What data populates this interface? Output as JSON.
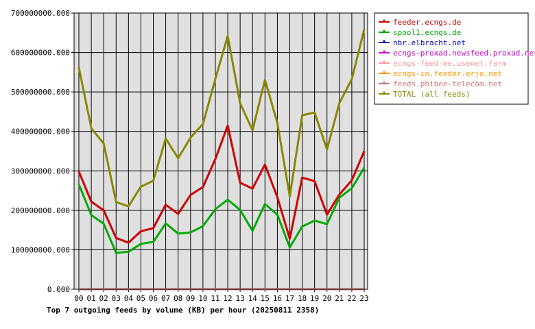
{
  "chart_data": {
    "type": "line",
    "title": "Top 7 outgoing feeds by volume (KB) per hour (20250811 2358)",
    "xlabel": "",
    "ylabel": "",
    "categories": [
      "00",
      "01",
      "02",
      "03",
      "04",
      "05",
      "06",
      "07",
      "08",
      "09",
      "10",
      "11",
      "12",
      "13",
      "14",
      "15",
      "16",
      "17",
      "18",
      "19",
      "20",
      "21",
      "22",
      "23"
    ],
    "ylim": [
      0,
      700000000
    ],
    "yticks": [
      0,
      100000000,
      200000000,
      300000000,
      400000000,
      500000000,
      600000000,
      700000000
    ],
    "ytick_labels": [
      "0.000",
      "100000000.000",
      "200000000.000",
      "300000000.000",
      "400000000.000",
      "500000000.000",
      "600000000.000",
      "700000000.000"
    ],
    "grid": true,
    "legend_position": "top-right",
    "series": [
      {
        "name": "feeder.ecngs.de",
        "color": "#cc0000",
        "values": [
          298000000,
          222000000,
          200000000,
          130000000,
          118000000,
          147000000,
          155000000,
          214000000,
          191000000,
          239000000,
          259000000,
          330000000,
          415000000,
          270000000,
          255000000,
          316000000,
          233000000,
          128000000,
          283000000,
          274000000,
          189000000,
          240000000,
          276000000,
          350000000
        ]
      },
      {
        "name": "spool1.ecngs.de",
        "color": "#00aa00",
        "values": [
          266000000,
          188000000,
          166000000,
          92000000,
          95000000,
          115000000,
          120000000,
          167000000,
          141000000,
          144000000,
          160000000,
          203000000,
          227000000,
          201000000,
          148000000,
          216000000,
          189000000,
          106000000,
          159000000,
          174000000,
          165000000,
          232000000,
          256000000,
          308000000
        ]
      },
      {
        "name": "nbr.elbracht.net",
        "color": "#0000cc",
        "values": [
          0,
          0,
          0,
          0,
          0,
          0,
          0,
          0,
          0,
          0,
          0,
          0,
          0,
          0,
          0,
          0,
          0,
          0,
          0,
          0,
          0,
          0,
          0,
          0
        ]
      },
      {
        "name": "ecngs-proxad.newsfeed.proxad.net",
        "color": "#cc00cc",
        "values": [
          0,
          0,
          0,
          0,
          0,
          0,
          0,
          0,
          0,
          0,
          0,
          0,
          0,
          0,
          0,
          0,
          0,
          0,
          0,
          0,
          0,
          0,
          0,
          0
        ]
      },
      {
        "name": "ecngs-feed-me.usenet.farm",
        "color": "#ff9999",
        "values": [
          0,
          0,
          0,
          0,
          0,
          0,
          0,
          0,
          0,
          0,
          0,
          0,
          0,
          0,
          0,
          0,
          0,
          0,
          0,
          0,
          0,
          0,
          0,
          0
        ]
      },
      {
        "name": "ecngs-in.feeder.erje.net",
        "color": "#ff9900",
        "values": [
          0,
          0,
          0,
          0,
          0,
          0,
          0,
          0,
          0,
          0,
          0,
          0,
          0,
          0,
          0,
          0,
          0,
          0,
          0,
          0,
          0,
          0,
          0,
          0
        ]
      },
      {
        "name": "feeds.phibee-telecom.net",
        "color": "#cc7777",
        "values": [
          0,
          0,
          0,
          0,
          0,
          0,
          0,
          0,
          0,
          0,
          0,
          0,
          0,
          0,
          0,
          0,
          0,
          0,
          0,
          0,
          0,
          0,
          0,
          0
        ]
      },
      {
        "name": "TOTAL (all feeds)",
        "color": "#888800",
        "values": [
          562000000,
          408000000,
          369000000,
          221000000,
          210000000,
          260000000,
          275000000,
          382000000,
          332000000,
          384000000,
          419000000,
          533000000,
          642000000,
          471000000,
          403000000,
          531000000,
          421000000,
          235000000,
          441000000,
          448000000,
          354000000,
          472000000,
          532000000,
          659000000
        ]
      }
    ]
  }
}
